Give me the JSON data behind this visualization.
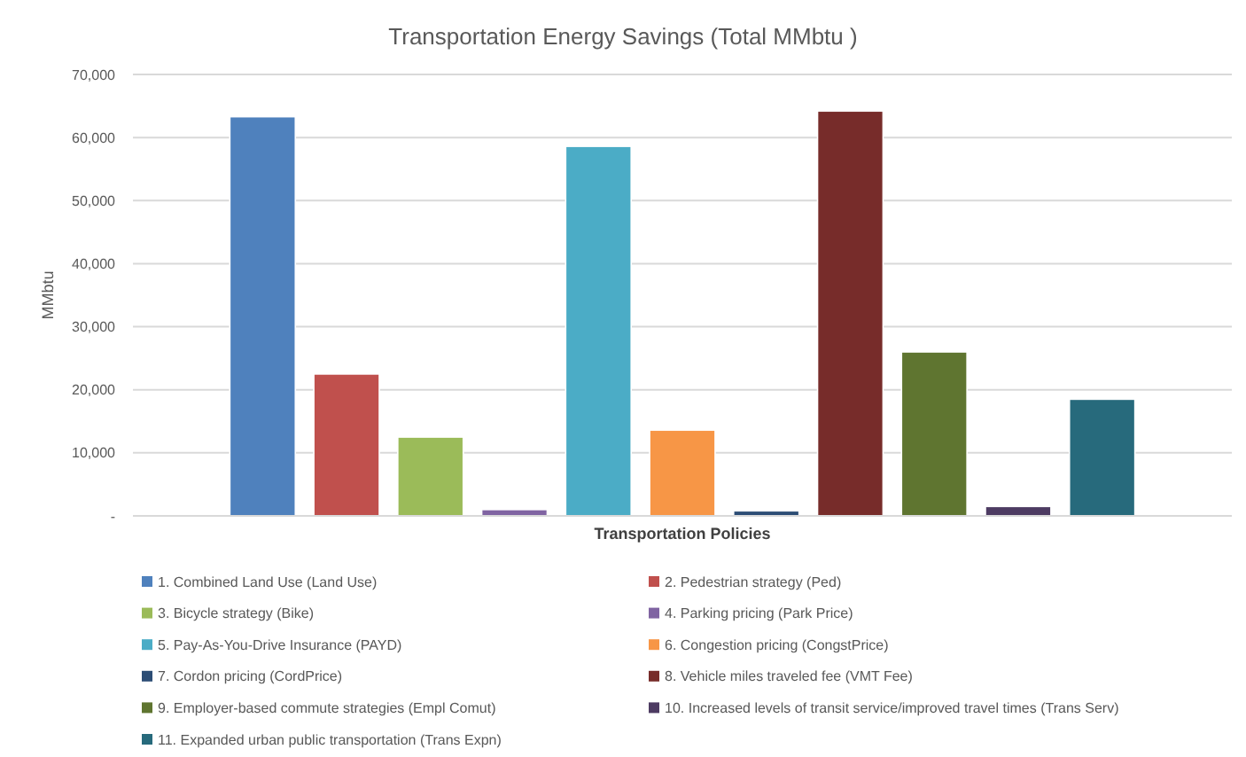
{
  "chart_data": {
    "type": "bar",
    "title": "Transportation Energy Savings (Total MMbtu )",
    "xlabel": "Transportation Policies",
    "ylabel": "MMbtu",
    "categories": [
      null
    ],
    "series": [
      {
        "name": "1. Combined Land Use (Land Use)",
        "color": "#4f81bd",
        "values": [
          63300
        ]
      },
      {
        "name": "2. Pedestrian strategy (Ped)",
        "color": "#c0504d",
        "values": [
          22500
        ]
      },
      {
        "name": "3. Bicycle strategy (Bike)",
        "color": "#9bbb59",
        "values": [
          12500
        ]
      },
      {
        "name": "4. Parking pricing (Park Price)",
        "color": "#8064a2",
        "values": [
          1000
        ]
      },
      {
        "name": "5. Pay-As-You-Drive Insurance (PAYD)",
        "color": "#4bacc6",
        "values": [
          58600
        ]
      },
      {
        "name": "6. Congestion pricing (CongstPrice)",
        "color": "#f79646",
        "values": [
          13600
        ]
      },
      {
        "name": "7. Cordon pricing (CordPrice)",
        "color": "#2c4d75",
        "values": [
          800
        ]
      },
      {
        "name": "8. Vehicle miles traveled fee (VMT Fee)",
        "color": "#772c2a",
        "values": [
          64200
        ]
      },
      {
        "name": "9. Employer-based commute strategies (Empl Comut)",
        "color": "#5f7530",
        "values": [
          26000
        ]
      },
      {
        "name": "10. Increased levels of transit service/improved travel times (Trans Serv)",
        "color": "#4d3b62",
        "values": [
          1500
        ]
      },
      {
        "name": "11. Expanded urban public transportation (Trans Expn)",
        "color": "#276a7c",
        "values": [
          18500
        ]
      }
    ],
    "ylim": [
      0,
      70000
    ],
    "yticks": [
      {
        "value": 0,
        "label": "-"
      },
      {
        "value": 10000,
        "label": "10,000"
      },
      {
        "value": 20000,
        "label": "20,000"
      },
      {
        "value": 30000,
        "label": "30,000"
      },
      {
        "value": 40000,
        "label": "40,000"
      },
      {
        "value": 50000,
        "label": "50,000"
      },
      {
        "value": 60000,
        "label": "60,000"
      },
      {
        "value": 70000,
        "label": "70,000"
      }
    ],
    "grid": "y",
    "legend": "bottom"
  }
}
